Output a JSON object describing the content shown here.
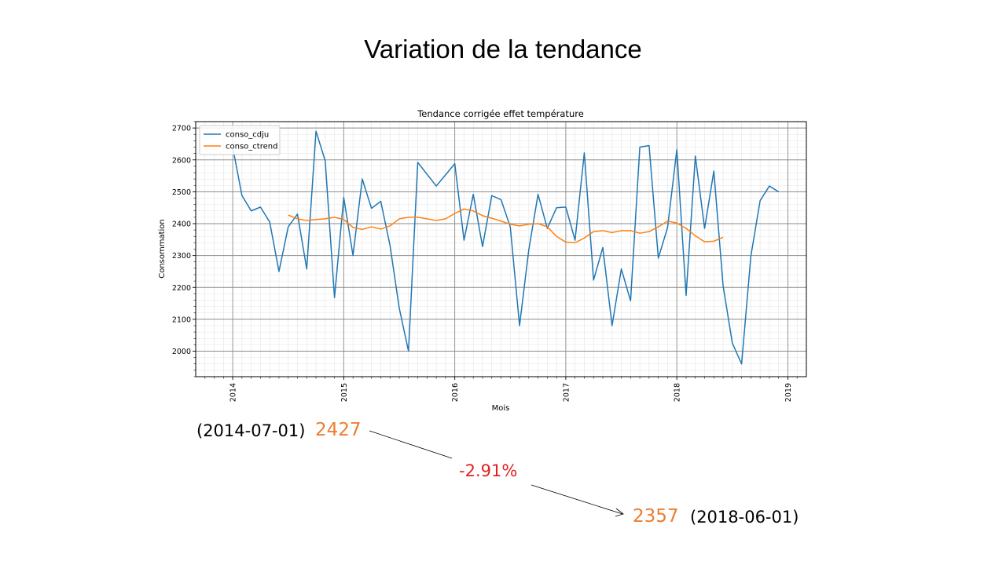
{
  "slide": {
    "title": "Variation de la tendance"
  },
  "annotations": {
    "start_date": "(2014-07-01)",
    "start_value": "2427",
    "change": "-2.91%",
    "end_value": "2357",
    "end_date": "(2018-06-01)"
  },
  "colors": {
    "conso_cdju": "#1f77b4",
    "conso_ctrend": "#ff7f0e",
    "annotation_value": "#ED7D31",
    "annotation_change": "#E02020"
  },
  "chart_data": {
    "type": "line",
    "title": "Tendance corrigée effet température",
    "xlabel": "Mois",
    "ylabel": "Consommation",
    "legend_position": "top-left",
    "grid": true,
    "x_tick_orientation": "vertical",
    "xlim": [
      "2013-09-01",
      "2019-03-01"
    ],
    "ylim": [
      1920,
      2720
    ],
    "x_ticks": [
      "2014",
      "2015",
      "2016",
      "2017",
      "2018",
      "2019"
    ],
    "y_ticks": [
      2000,
      2100,
      2200,
      2300,
      2400,
      2500,
      2600,
      2700
    ],
    "series": [
      {
        "name": "conso_cdju",
        "color": "#1f77b4",
        "points": [
          [
            "2014-01-01",
            2640
          ],
          [
            "2014-02-01",
            2488
          ],
          [
            "2014-03-01",
            2440
          ],
          [
            "2014-04-01",
            2452
          ],
          [
            "2014-05-01",
            2405
          ],
          [
            "2014-06-01",
            2250
          ],
          [
            "2014-07-01",
            2390
          ],
          [
            "2014-08-01",
            2430
          ],
          [
            "2014-09-01",
            2258
          ],
          [
            "2014-10-01",
            2690
          ],
          [
            "2014-11-01",
            2597
          ],
          [
            "2014-12-01",
            2168
          ],
          [
            "2015-01-01",
            2482
          ],
          [
            "2015-02-01",
            2300
          ],
          [
            "2015-03-01",
            2540
          ],
          [
            "2015-04-01",
            2448
          ],
          [
            "2015-05-01",
            2470
          ],
          [
            "2015-06-01",
            2332
          ],
          [
            "2015-07-01",
            2135
          ],
          [
            "2015-08-01",
            2000
          ],
          [
            "2015-09-01",
            2592
          ],
          [
            "2015-10-01",
            2555
          ],
          [
            "2015-11-01",
            2518
          ],
          [
            "2015-12-01",
            2553
          ],
          [
            "2016-01-01",
            2588
          ],
          [
            "2016-02-01",
            2348
          ],
          [
            "2016-03-01",
            2492
          ],
          [
            "2016-04-01",
            2328
          ],
          [
            "2016-05-01",
            2488
          ],
          [
            "2016-06-01",
            2475
          ],
          [
            "2016-07-01",
            2390
          ],
          [
            "2016-08-01",
            2080
          ],
          [
            "2016-09-01",
            2318
          ],
          [
            "2016-10-01",
            2492
          ],
          [
            "2016-11-01",
            2385
          ],
          [
            "2016-12-01",
            2450
          ],
          [
            "2017-01-01",
            2452
          ],
          [
            "2017-02-01",
            2348
          ],
          [
            "2017-03-01",
            2622
          ],
          [
            "2017-04-01",
            2223
          ],
          [
            "2017-05-01",
            2325
          ],
          [
            "2017-06-01",
            2080
          ],
          [
            "2017-07-01",
            2258
          ],
          [
            "2017-08-01",
            2158
          ],
          [
            "2017-09-01",
            2640
          ],
          [
            "2017-10-01",
            2645
          ],
          [
            "2017-11-01",
            2292
          ],
          [
            "2017-12-01",
            2388
          ],
          [
            "2018-01-01",
            2632
          ],
          [
            "2018-02-01",
            2175
          ],
          [
            "2018-03-01",
            2612
          ],
          [
            "2018-04-01",
            2385
          ],
          [
            "2018-05-01",
            2565
          ],
          [
            "2018-06-01",
            2205
          ],
          [
            "2018-07-01",
            2025
          ],
          [
            "2018-08-01",
            1960
          ],
          [
            "2018-09-01",
            2298
          ],
          [
            "2018-10-01",
            2472
          ],
          [
            "2018-11-01",
            2518
          ],
          [
            "2018-12-01",
            2500
          ]
        ]
      },
      {
        "name": "conso_ctrend",
        "color": "#ff7f0e",
        "points": [
          [
            "2014-07-01",
            2427
          ],
          [
            "2014-08-01",
            2415
          ],
          [
            "2014-09-01",
            2410
          ],
          [
            "2014-10-01",
            2413
          ],
          [
            "2014-11-01",
            2415
          ],
          [
            "2014-12-01",
            2420
          ],
          [
            "2015-01-01",
            2413
          ],
          [
            "2015-02-01",
            2388
          ],
          [
            "2015-03-01",
            2382
          ],
          [
            "2015-04-01",
            2390
          ],
          [
            "2015-05-01",
            2383
          ],
          [
            "2015-06-01",
            2393
          ],
          [
            "2015-07-01",
            2415
          ],
          [
            "2015-08-01",
            2420
          ],
          [
            "2015-09-01",
            2420
          ],
          [
            "2015-10-01",
            2415
          ],
          [
            "2015-11-01",
            2410
          ],
          [
            "2015-12-01",
            2415
          ],
          [
            "2016-01-01",
            2432
          ],
          [
            "2016-02-01",
            2446
          ],
          [
            "2016-03-01",
            2440
          ],
          [
            "2016-04-01",
            2425
          ],
          [
            "2016-05-01",
            2417
          ],
          [
            "2016-06-01",
            2408
          ],
          [
            "2016-07-01",
            2398
          ],
          [
            "2016-08-01",
            2393
          ],
          [
            "2016-09-01",
            2398
          ],
          [
            "2016-10-01",
            2400
          ],
          [
            "2016-11-01",
            2390
          ],
          [
            "2016-12-01",
            2360
          ],
          [
            "2017-01-01",
            2342
          ],
          [
            "2017-02-01",
            2340
          ],
          [
            "2017-03-01",
            2355
          ],
          [
            "2017-04-01",
            2375
          ],
          [
            "2017-05-01",
            2378
          ],
          [
            "2017-06-01",
            2372
          ],
          [
            "2017-07-01",
            2378
          ],
          [
            "2017-08-01",
            2378
          ],
          [
            "2017-09-01",
            2370
          ],
          [
            "2017-10-01",
            2375
          ],
          [
            "2017-11-01",
            2390
          ],
          [
            "2017-12-01",
            2408
          ],
          [
            "2018-01-01",
            2402
          ],
          [
            "2018-02-01",
            2385
          ],
          [
            "2018-03-01",
            2362
          ],
          [
            "2018-04-01",
            2343
          ],
          [
            "2018-05-01",
            2345
          ],
          [
            "2018-06-01",
            2357
          ]
        ]
      }
    ]
  }
}
